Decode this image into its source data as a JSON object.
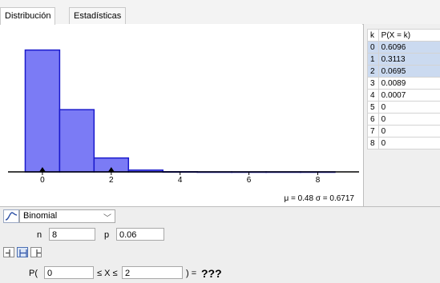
{
  "tabs": [
    {
      "label": "Distribución",
      "active": true
    },
    {
      "label": "Estadísticas",
      "active": false
    }
  ],
  "chart_data": {
    "type": "bar",
    "categories": [
      0,
      1,
      2,
      3,
      4,
      5,
      6,
      7,
      8
    ],
    "values": [
      0.6096,
      0.3113,
      0.0695,
      0.0089,
      0.0007,
      0,
      0,
      0,
      0
    ],
    "x_ticks": [
      "0",
      "2",
      "4",
      "6",
      "8"
    ],
    "xlim": [
      -1,
      9.2
    ],
    "ylim": [
      0,
      0.66
    ],
    "bar_fill": "#7b7bf5",
    "bar_stroke": "#1a1acc",
    "markers_at": [
      0,
      2
    ],
    "stats_text": "μ = 0.48   σ = 0.6717"
  },
  "table": {
    "headers": [
      "k",
      "P(X = k)"
    ],
    "rows": [
      {
        "k": "0",
        "p": "0.6096",
        "selected": true
      },
      {
        "k": "1",
        "p": "0.3113",
        "selected": true
      },
      {
        "k": "2",
        "p": "0.0695",
        "selected": true
      },
      {
        "k": "3",
        "p": "0.0089",
        "selected": false
      },
      {
        "k": "4",
        "p": "0.0007",
        "selected": false
      },
      {
        "k": "5",
        "p": "0",
        "selected": false
      },
      {
        "k": "6",
        "p": "0",
        "selected": false
      },
      {
        "k": "7",
        "p": "0",
        "selected": false
      },
      {
        "k": "8",
        "p": "0",
        "selected": false
      }
    ]
  },
  "controls": {
    "distribution": "Binomial",
    "n_label": "n",
    "n_value": "8",
    "p_label": "p",
    "p_value": "0.06",
    "prob_prefix": "P(",
    "lower_value": "0",
    "between_label": "≤ X ≤",
    "upper_value": "2",
    "result_label": ") =",
    "result_value": "???"
  }
}
